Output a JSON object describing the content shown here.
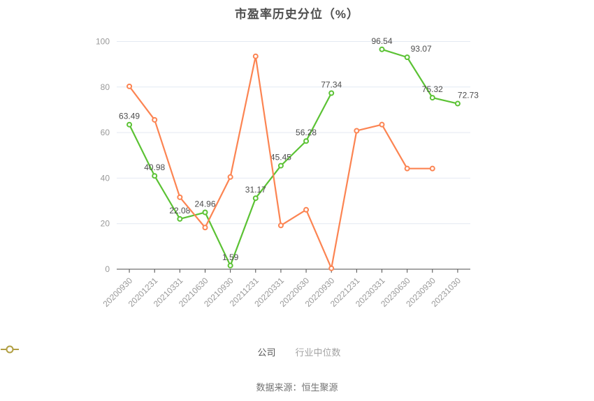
{
  "chart_data": {
    "type": "line",
    "title": "市盈率历史分位（%）",
    "categories": [
      "20200930",
      "20201231",
      "20210331",
      "20210630",
      "20210930",
      "20211231",
      "20220331",
      "20220630",
      "20220930",
      "20221231",
      "20230331",
      "20230630",
      "20230930",
      "20231030"
    ],
    "series": [
      {
        "name": "公司",
        "color": "#5bc234",
        "show_labels": true,
        "values": [
          63.49,
          40.98,
          22.08,
          24.96,
          1.59,
          31.17,
          45.45,
          56.28,
          77.34,
          null,
          96.54,
          93.07,
          75.32,
          72.73
        ]
      },
      {
        "name": "行业中位数",
        "color": "#fc8452",
        "show_labels": false,
        "values": [
          80.3,
          65.6,
          31.6,
          18.3,
          40.5,
          93.5,
          19.2,
          26.1,
          0.4,
          60.8,
          63.5,
          44.2,
          44.2,
          null
        ]
      }
    ],
    "ylim": [
      0,
      100
    ],
    "yticks": [
      0,
      20,
      40,
      60,
      80,
      100
    ],
    "grid": true,
    "legend_position": "bottom",
    "colors": {
      "grid_line": "#e4e9f2",
      "axis_line": "#4d4d4d",
      "tick_label": "#999999",
      "data_label": "#4d4d4d",
      "title": "#4d4d4d"
    }
  },
  "footer": {
    "source": "数据来源：恒生聚源"
  }
}
